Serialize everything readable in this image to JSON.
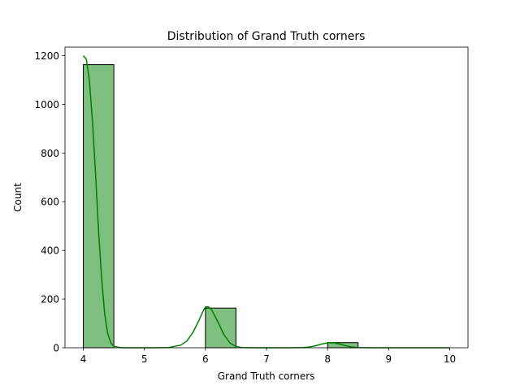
{
  "chart_data": {
    "type": "bar",
    "title": "Distribution of Grand Truth corners",
    "xlabel": "Grand Truth corners",
    "ylabel": "Count",
    "xlim": [
      3.7,
      10.3
    ],
    "ylim": [
      0,
      1235
    ],
    "xticks": [
      4,
      5,
      6,
      7,
      8,
      9,
      10
    ],
    "yticks": [
      0,
      200,
      400,
      600,
      800,
      1000,
      1200
    ],
    "bins": [
      {
        "x0": 4.0,
        "x1": 4.5,
        "count": 1163
      },
      {
        "x0": 4.5,
        "x1": 5.0,
        "count": 0
      },
      {
        "x0": 5.0,
        "x1": 5.5,
        "count": 0
      },
      {
        "x0": 5.5,
        "x1": 6.0,
        "count": 0
      },
      {
        "x0": 6.0,
        "x1": 6.5,
        "count": 163
      },
      {
        "x0": 6.5,
        "x1": 7.0,
        "count": 0
      },
      {
        "x0": 7.0,
        "x1": 7.5,
        "count": 0
      },
      {
        "x0": 7.5,
        "x1": 8.0,
        "count": 0
      },
      {
        "x0": 8.0,
        "x1": 8.5,
        "count": 21
      },
      {
        "x0": 8.5,
        "x1": 9.0,
        "count": 0
      },
      {
        "x0": 9.0,
        "x1": 9.5,
        "count": 0
      },
      {
        "x0": 9.5,
        "x1": 10.0,
        "count": 0
      }
    ],
    "kde": {
      "x": [
        4.0,
        4.05,
        4.1,
        4.15,
        4.2,
        4.25,
        4.3,
        4.35,
        4.4,
        4.45,
        4.5,
        4.6,
        4.7,
        4.8,
        5.0,
        5.2,
        5.4,
        5.6,
        5.7,
        5.8,
        5.9,
        5.95,
        6.0,
        6.05,
        6.1,
        6.2,
        6.3,
        6.4,
        6.5,
        6.6,
        6.8,
        7.0,
        7.2,
        7.4,
        7.6,
        7.7,
        7.8,
        7.9,
        8.0,
        8.1,
        8.2,
        8.3,
        8.4,
        8.5,
        8.7,
        9.0,
        9.5,
        10.0
      ],
      "y": [
        1200,
        1185,
        1095,
        930,
        715,
        480,
        285,
        140,
        58,
        20,
        6,
        1,
        0,
        0,
        0,
        0,
        1,
        11,
        29,
        65,
        115,
        145,
        168,
        168,
        156,
        108,
        55,
        20,
        5,
        1,
        0,
        0,
        0,
        0,
        1,
        3,
        8,
        15,
        20,
        20,
        15,
        8,
        3,
        1,
        0,
        0,
        0,
        0
      ]
    },
    "colors": {
      "bar_fill": "#008000",
      "bar_fill_opacity": 0.5,
      "bar_edge": "#000000",
      "kde_line": "#008000"
    },
    "grid": false,
    "legend": "none"
  }
}
